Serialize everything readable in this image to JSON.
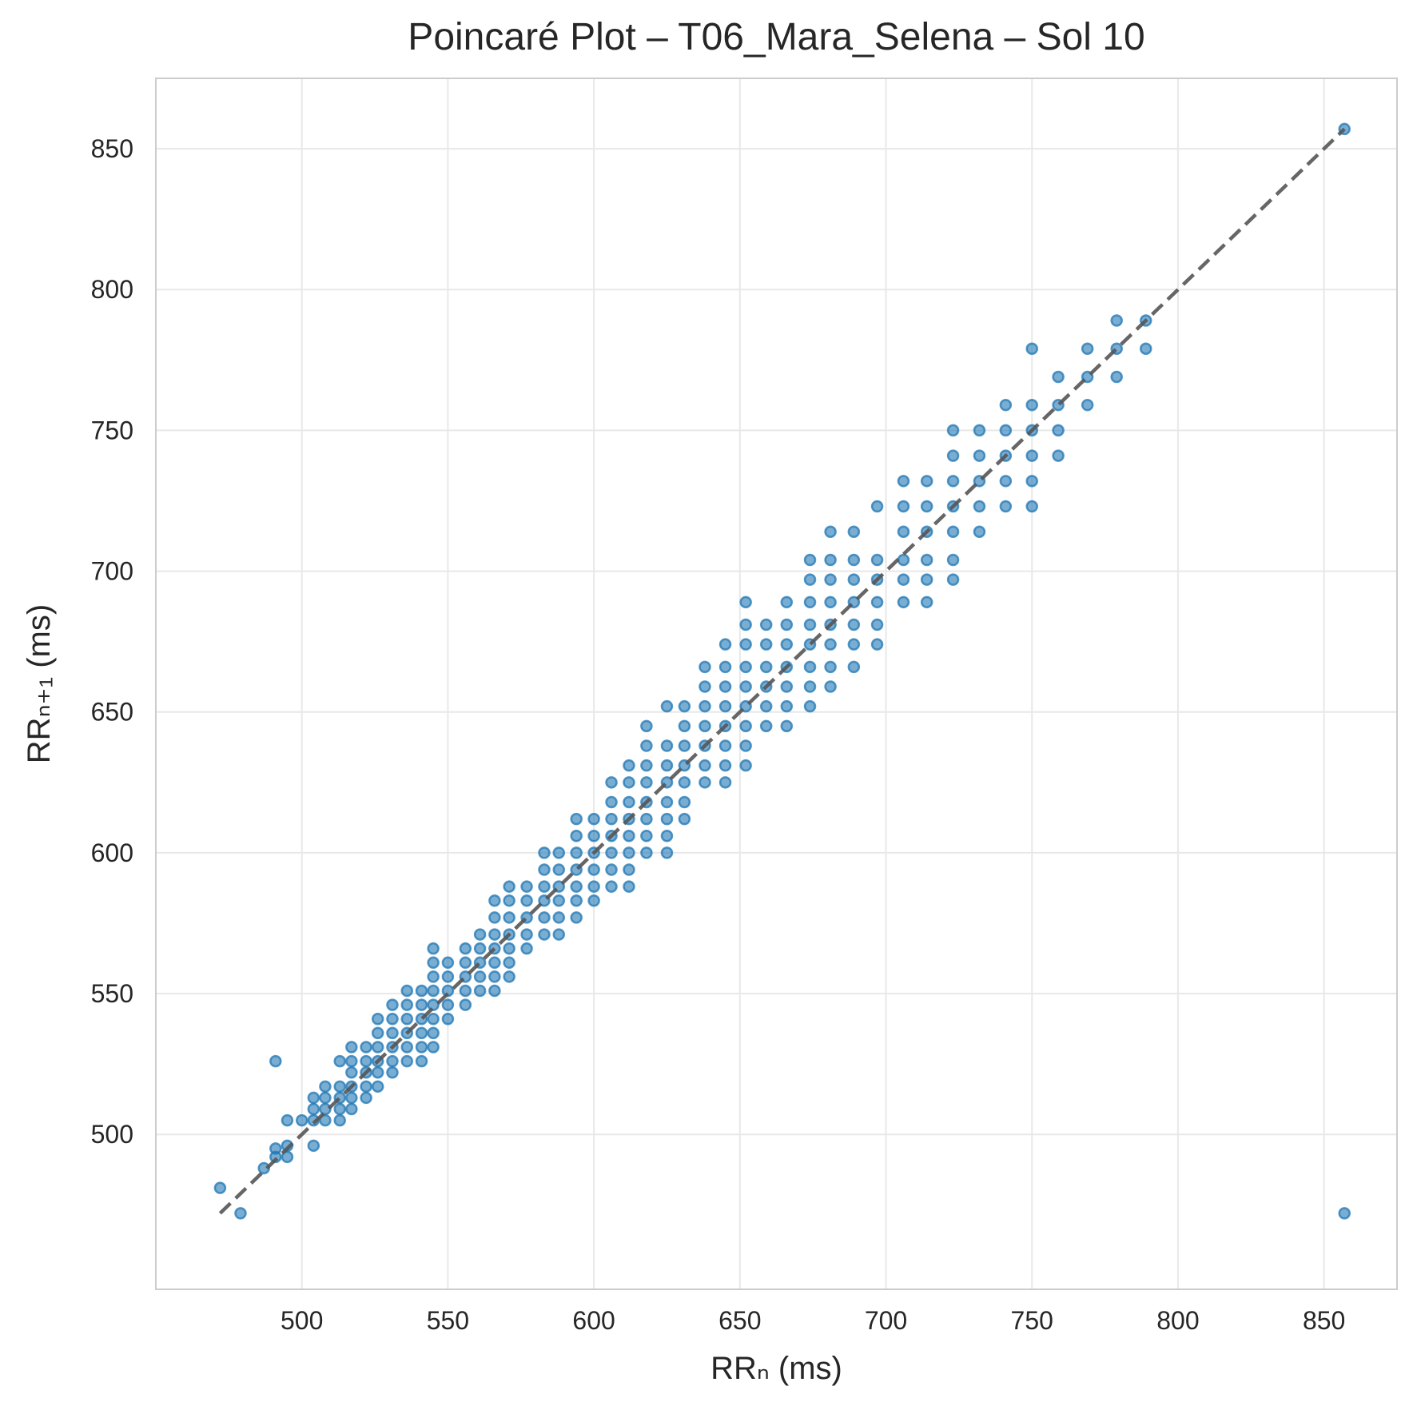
{
  "chart_data": {
    "type": "scatter",
    "title": "Poincaré Plot – T06_Mara_Selena – Sol 10",
    "xlabel": "RRₙ (ms)",
    "ylabel": "RRₙ₊₁ (ms)",
    "xlim": [
      450,
      875
    ],
    "ylim": [
      445,
      875
    ],
    "xticks": [
      500,
      550,
      600,
      650,
      700,
      750,
      800,
      850
    ],
    "yticks": [
      500,
      550,
      600,
      650,
      700,
      750,
      800,
      850
    ],
    "grid": true,
    "legend": "none",
    "identity_line": {
      "from": [
        472,
        472
      ],
      "to": [
        857,
        857
      ],
      "style": "dashed",
      "color": "#555555"
    },
    "marker_color": "#1f77b4",
    "marker_alpha": 0.6,
    "series": [
      {
        "x": [
          472,
          479,
          487,
          491,
          491,
          491,
          495,
          495,
          495,
          500,
          504,
          504,
          504,
          504,
          508,
          508,
          508,
          508,
          513,
          513,
          513,
          513,
          513,
          517,
          517,
          517,
          517,
          517,
          517,
          522,
          522,
          522,
          522,
          522,
          526,
          526,
          526,
          526,
          526,
          526,
          531,
          531,
          531,
          531,
          531,
          531,
          536,
          536,
          536,
          536,
          536,
          536,
          541,
          541,
          541,
          541,
          541,
          541,
          545,
          545,
          545,
          545,
          545,
          545,
          545,
          545,
          550,
          550,
          550,
          550,
          550,
          556,
          556,
          556,
          556,
          556,
          561,
          561,
          561,
          561,
          561,
          566,
          566,
          566,
          566,
          566,
          566,
          566,
          571,
          571,
          571,
          571,
          571,
          571,
          571,
          577,
          577,
          577,
          577,
          577,
          583,
          583,
          583,
          583,
          583,
          583,
          588,
          588,
          588,
          588,
          588,
          588,
          594,
          594,
          594,
          594,
          594,
          594,
          594,
          600,
          600,
          600,
          600,
          600,
          600,
          606,
          606,
          606,
          606,
          606,
          606,
          606,
          612,
          612,
          612,
          612,
          612,
          612,
          612,
          612,
          618,
          618,
          618,
          618,
          618,
          618,
          618,
          618,
          625,
          625,
          625,
          625,
          625,
          625,
          625,
          625,
          631,
          631,
          631,
          631,
          631,
          631,
          631,
          638,
          638,
          638,
          638,
          638,
          638,
          638,
          645,
          645,
          645,
          645,
          645,
          645,
          645,
          645,
          652,
          652,
          652,
          652,
          652,
          652,
          652,
          652,
          652,
          659,
          659,
          659,
          659,
          659,
          659,
          666,
          666,
          666,
          666,
          666,
          666,
          666,
          674,
          674,
          674,
          674,
          674,
          674,
          674,
          674,
          681,
          681,
          681,
          681,
          681,
          681,
          681,
          681,
          689,
          689,
          689,
          689,
          689,
          689,
          689,
          697,
          697,
          697,
          697,
          697,
          697,
          706,
          706,
          706,
          706,
          706,
          706,
          714,
          714,
          714,
          714,
          714,
          714,
          723,
          723,
          723,
          723,
          723,
          723,
          723,
          732,
          732,
          732,
          732,
          732,
          741,
          741,
          741,
          741,
          741,
          750,
          750,
          750,
          750,
          750,
          750,
          759,
          759,
          759,
          759,
          769,
          769,
          769,
          779,
          779,
          779,
          789,
          789,
          857,
          857
        ],
        "y": [
          481,
          472,
          488,
          492,
          495,
          526,
          492,
          496,
          505,
          505,
          496,
          505,
          509,
          513,
          505,
          509,
          513,
          517,
          505,
          509,
          513,
          517,
          526,
          509,
          513,
          517,
          522,
          526,
          531,
          513,
          517,
          522,
          526,
          531,
          517,
          522,
          526,
          531,
          536,
          541,
          522,
          526,
          531,
          536,
          541,
          546,
          526,
          531,
          536,
          541,
          546,
          551,
          526,
          531,
          536,
          541,
          546,
          551,
          531,
          536,
          541,
          546,
          551,
          556,
          561,
          566,
          541,
          546,
          551,
          556,
          561,
          546,
          551,
          556,
          561,
          566,
          551,
          556,
          561,
          566,
          571,
          551,
          556,
          561,
          566,
          571,
          577,
          583,
          556,
          561,
          566,
          571,
          577,
          583,
          588,
          566,
          571,
          577,
          583,
          588,
          571,
          577,
          583,
          588,
          594,
          600,
          571,
          577,
          583,
          588,
          594,
          600,
          577,
          583,
          588,
          594,
          600,
          606,
          612,
          583,
          588,
          594,
          600,
          606,
          612,
          588,
          594,
          600,
          606,
          612,
          618,
          625,
          588,
          594,
          600,
          606,
          612,
          618,
          625,
          631,
          600,
          606,
          612,
          618,
          625,
          631,
          638,
          645,
          600,
          606,
          612,
          618,
          625,
          631,
          638,
          652,
          612,
          618,
          625,
          631,
          638,
          645,
          652,
          625,
          631,
          638,
          645,
          652,
          659,
          666,
          625,
          631,
          638,
          645,
          652,
          659,
          666,
          674,
          631,
          638,
          645,
          652,
          659,
          666,
          674,
          681,
          689,
          645,
          652,
          659,
          666,
          674,
          681,
          645,
          652,
          659,
          666,
          674,
          681,
          689,
          652,
          659,
          666,
          674,
          681,
          689,
          697,
          704,
          659,
          666,
          674,
          681,
          689,
          697,
          704,
          714,
          666,
          674,
          681,
          689,
          697,
          704,
          714,
          674,
          681,
          689,
          697,
          704,
          723,
          689,
          697,
          704,
          714,
          723,
          732,
          689,
          697,
          704,
          714,
          723,
          732,
          697,
          704,
          714,
          723,
          732,
          741,
          750,
          714,
          723,
          732,
          741,
          750,
          723,
          732,
          741,
          750,
          759,
          723,
          732,
          741,
          750,
          759,
          779,
          741,
          750,
          759,
          769,
          759,
          769,
          779,
          769,
          779,
          789,
          779,
          789,
          472,
          857
        ]
      }
    ]
  }
}
